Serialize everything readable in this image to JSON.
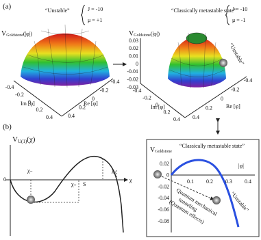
{
  "panel_a": {
    "label": "(a)",
    "left": {
      "v_main": "V",
      "v_sub": "Goldstone",
      "v_arg": "(|φ|)",
      "annotation": "“Unstable”",
      "params": [
        "J = -10",
        "μ = +1"
      ],
      "im_label": "Im [φ]",
      "re_label": "Re [φ]",
      "im_ticks": [
        "-0.4",
        "-0.2",
        "0",
        "0.2",
        "0.4"
      ],
      "re_ticks": [
        "-0.4",
        "-0.2",
        "0",
        "0.2",
        "0.4"
      ]
    },
    "right": {
      "v_main": "V",
      "v_sub": "Goldstone",
      "v_arg": "(|φ|)",
      "annotation": "“Classically metastable state”",
      "params": [
        "J = -10",
        "μ = -1"
      ],
      "unstable": "“Unstable”",
      "im_label": "Im [φ]",
      "re_label": "Re [φ]",
      "z_ticks": [
        "0.03",
        "0.02",
        "0.01",
        "0",
        "-0.01",
        "-0.02",
        "-0.03"
      ],
      "im_ticks": [
        "-0.4",
        "-0.2",
        "0",
        "0.2",
        "0.4"
      ],
      "re_ticks": [
        "-0.4",
        "-0.2",
        "0",
        "0.2",
        "0.4"
      ]
    }
  },
  "panel_b": {
    "label": "(b)",
    "left": {
      "v_main": "V",
      "v_sub": "U(1)",
      "v_arg": "(χ)",
      "origin": "0",
      "chi_minus": "χ₋",
      "chi_plus": "χ₊",
      "s": "S",
      "chi_zero": "χ₀",
      "chi": "χ"
    },
    "right": {
      "v_main": "V",
      "v_sub": "Goldstone",
      "annotation": "“Classically metastable state”",
      "x_label": "|φ|",
      "x_ticks": [
        "0.1",
        "0.2",
        "0.3",
        "0.4"
      ],
      "y_ticks": [
        "0.02",
        "0",
        "-0.02",
        "-0.04",
        "-0.06",
        "-0.08"
      ],
      "tunneling": [
        "Quantum mechanical",
        "tunneling",
        "(Quantum effects)"
      ],
      "unstable": "“Unstable”"
    }
  }
}
